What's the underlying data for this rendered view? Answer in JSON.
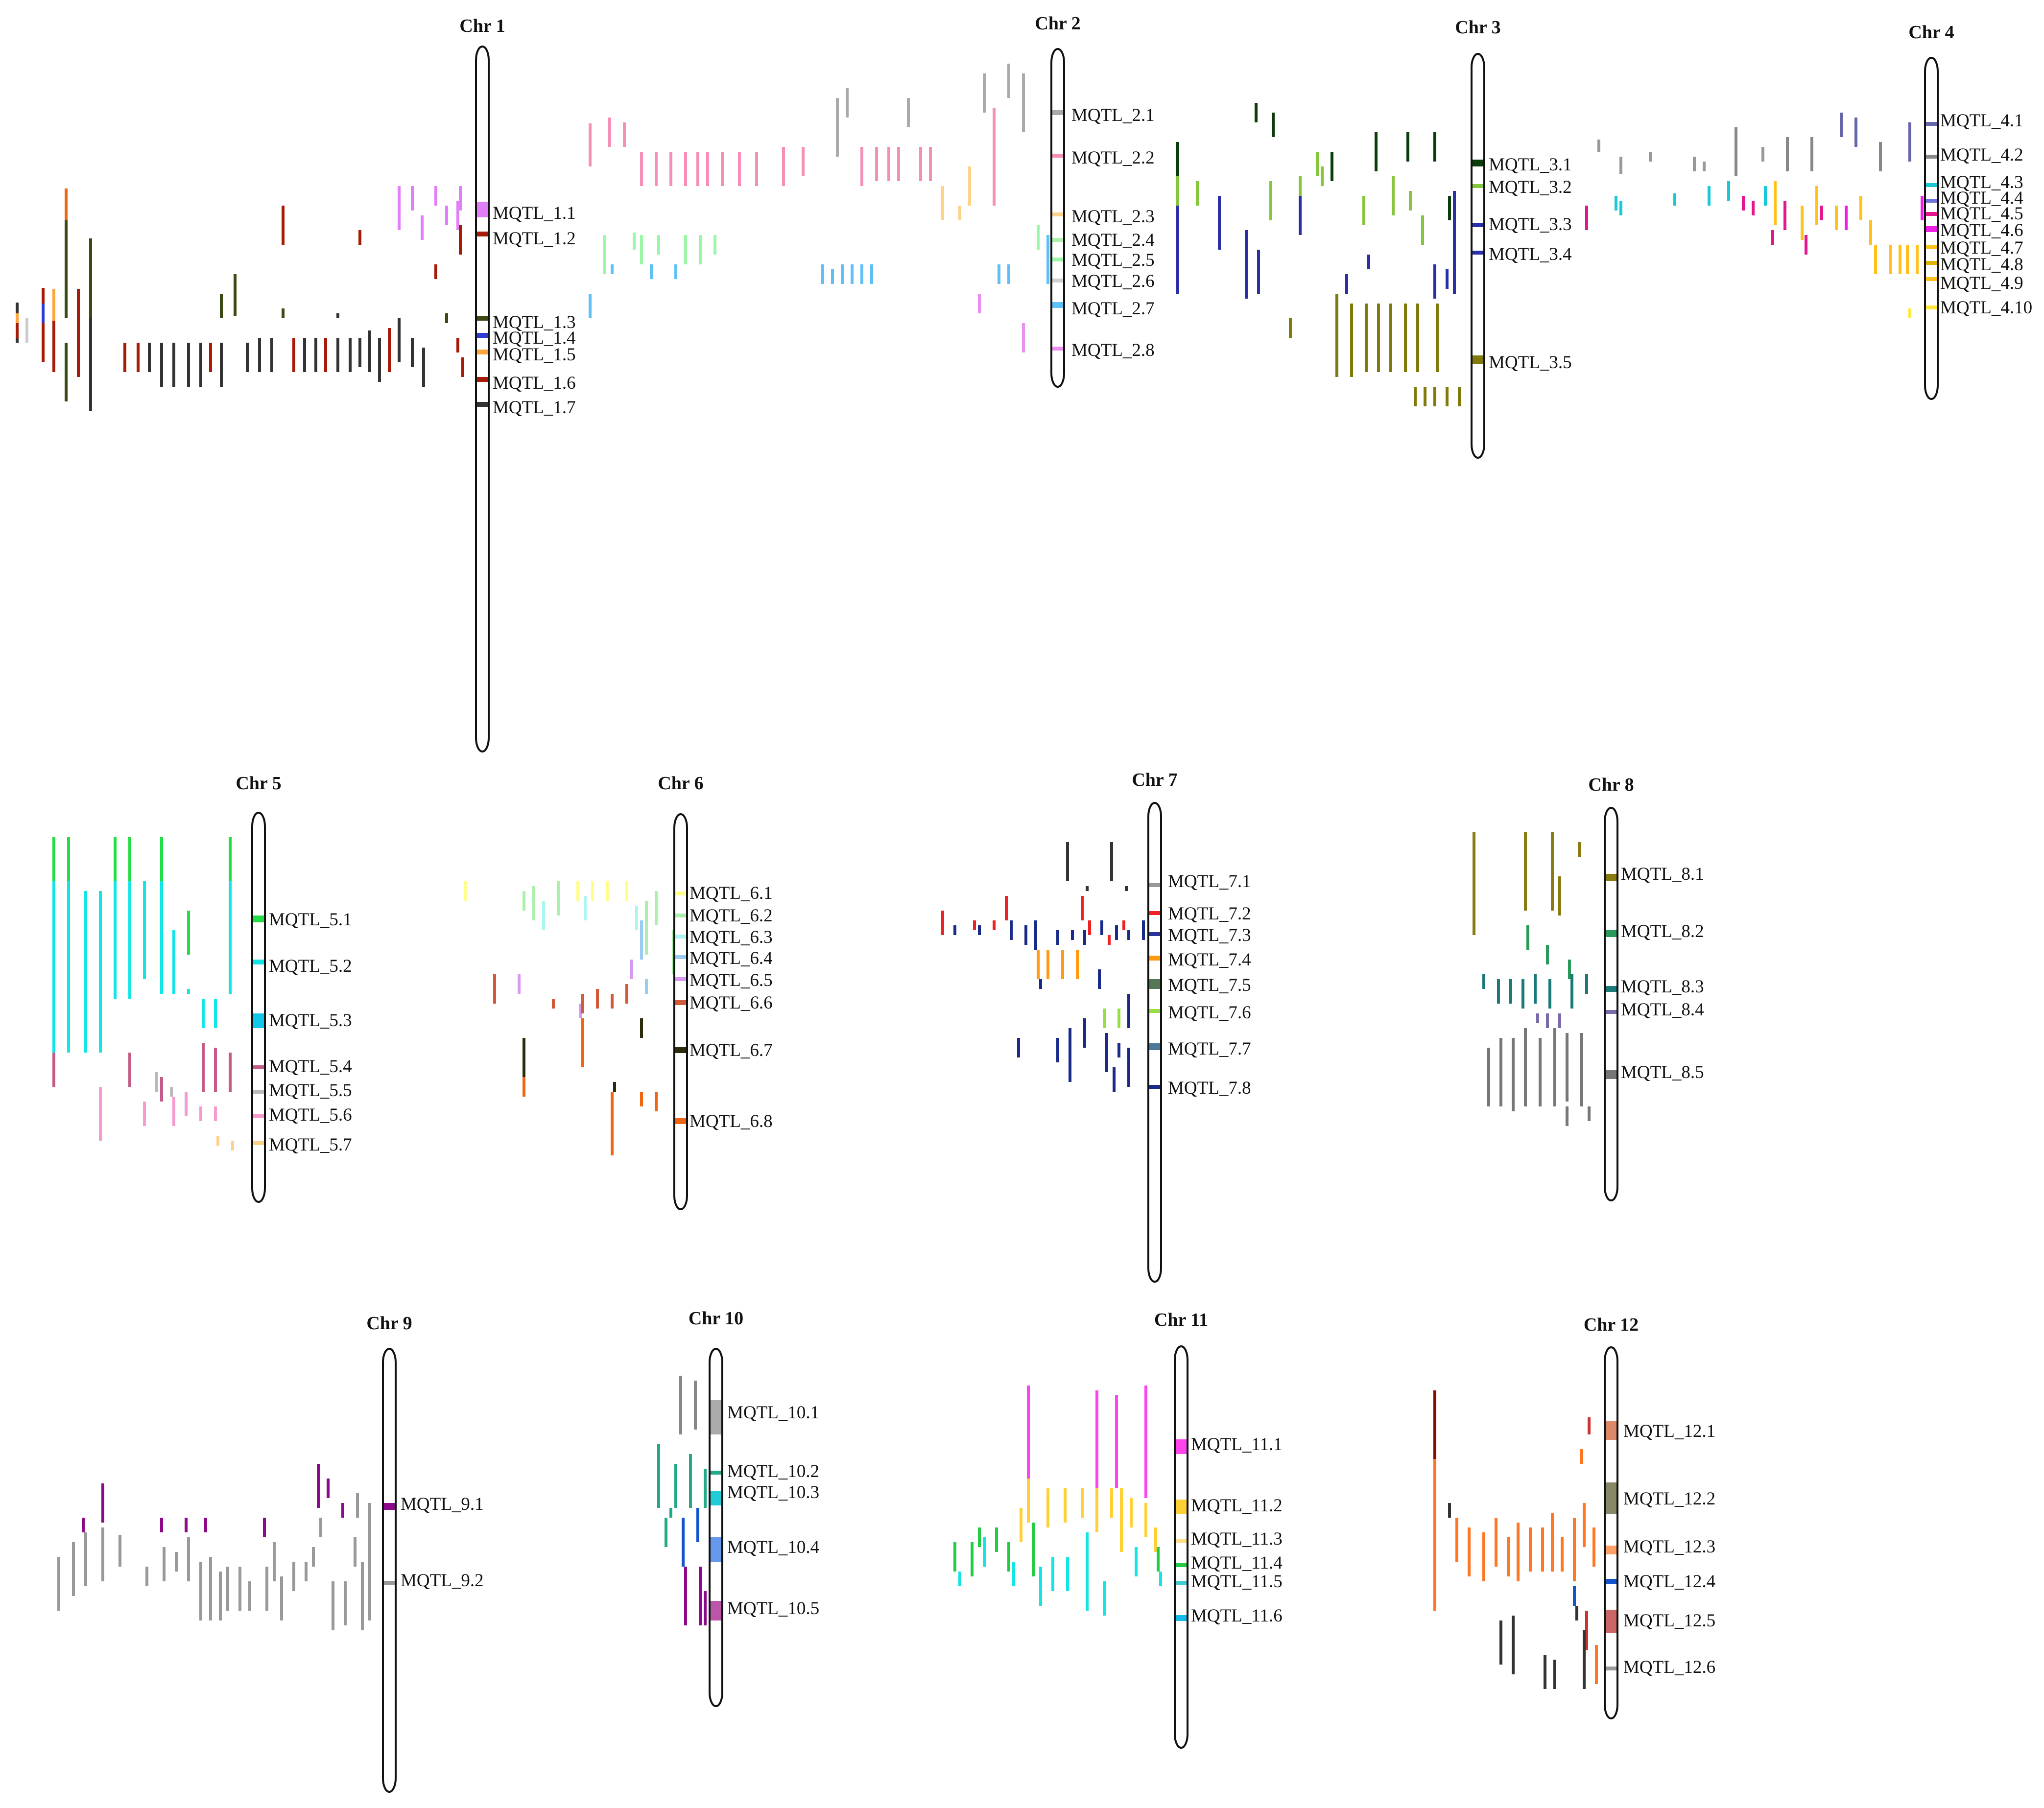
{
  "figure": {
    "chromosomes": [
      {
        "name": "Chr 1",
        "mqtls": [
          {
            "label": "MQTL_1.1",
            "color": "#e27ef7"
          },
          {
            "label": "MQTL_1.2",
            "color": "#a81a08"
          },
          {
            "label": "MQTL_1.3",
            "color": "#3a4a12"
          },
          {
            "label": "MQTL_1.4",
            "color": "#2e3bd6"
          },
          {
            "label": "MQTL_1.5",
            "color": "#ffa33a"
          },
          {
            "label": "MQTL_1.6",
            "color": "#a81a08"
          },
          {
            "label": "MQTL_1.7",
            "color": "#333333"
          }
        ]
      },
      {
        "name": "Chr 2",
        "mqtls": [
          {
            "label": "MQTL_2.1",
            "color": "#aaaaaa"
          },
          {
            "label": "MQTL_2.2",
            "color": "#f58fb8"
          },
          {
            "label": "MQTL_2.3",
            "color": "#ffd28a"
          },
          {
            "label": "MQTL_2.4",
            "color": "#aef0ae"
          },
          {
            "label": "MQTL_2.5",
            "color": "#9af7a8"
          },
          {
            "label": "MQTL_2.6",
            "color": "#cfcfcf"
          },
          {
            "label": "MQTL_2.7",
            "color": "#5fbff7"
          },
          {
            "label": "MQTL_2.8",
            "color": "#ea8ef0"
          }
        ]
      },
      {
        "name": "Chr 3",
        "mqtls": [
          {
            "label": "MQTL_3.1",
            "color": "#0b3d0b"
          },
          {
            "label": "MQTL_3.2",
            "color": "#86c63c"
          },
          {
            "label": "MQTL_3.3",
            "color": "#2a2fa8"
          },
          {
            "label": "MQTL_3.4",
            "color": "#2a2fa8"
          },
          {
            "label": "MQTL_3.5",
            "color": "#807a0a"
          }
        ]
      },
      {
        "name": "Chr 4",
        "mqtls": [
          {
            "label": "MQTL_4.1",
            "color": "#6666aa"
          },
          {
            "label": "MQTL_4.2",
            "color": "#888888"
          },
          {
            "label": "MQTL_4.3",
            "color": "#19c7d6"
          },
          {
            "label": "MQTL_4.4",
            "color": "#6f73d9"
          },
          {
            "label": "MQTL_4.5",
            "color": "#e3158f"
          },
          {
            "label": "MQTL_4.6",
            "color": "#f01de8"
          },
          {
            "label": "MQTL_4.7",
            "color": "#ffc21a"
          },
          {
            "label": "MQTL_4.8",
            "color": "#e0b400"
          },
          {
            "label": "MQTL_4.9",
            "color": "#ffc21a"
          },
          {
            "label": "MQTL_4.10",
            "color": "#ffe83a"
          }
        ]
      },
      {
        "name": "Chr 5",
        "mqtls": [
          {
            "label": "MQTL_5.1",
            "color": "#22dd44"
          },
          {
            "label": "MQTL_5.2",
            "color": "#11e6e6"
          },
          {
            "label": "MQTL_5.3",
            "color": "#11c8e6"
          },
          {
            "label": "MQTL_5.4",
            "color": "#c45c87"
          },
          {
            "label": "MQTL_5.5",
            "color": "#bbbbbb"
          },
          {
            "label": "MQTL_5.6",
            "color": "#f79ad0"
          },
          {
            "label": "MQTL_5.7",
            "color": "#ffd08a"
          }
        ]
      },
      {
        "name": "Chr 6",
        "mqtls": [
          {
            "label": "MQTL_6.1",
            "color": "#ffff88"
          },
          {
            "label": "MQTL_6.2",
            "color": "#aaf0aa"
          },
          {
            "label": "MQTL_6.3",
            "color": "#aaf7ef"
          },
          {
            "label": "MQTL_6.4",
            "color": "#99ccf0"
          },
          {
            "label": "MQTL_6.5",
            "color": "#d89af0"
          },
          {
            "label": "MQTL_6.6",
            "color": "#d05a3a"
          },
          {
            "label": "MQTL_6.7",
            "color": "#2c2c0c"
          },
          {
            "label": "MQTL_6.8",
            "color": "#ee6611"
          }
        ]
      },
      {
        "name": "Chr 7",
        "mqtls": [
          {
            "label": "MQTL_7.1",
            "color": "#999999"
          },
          {
            "label": "MQTL_7.2",
            "color": "#ee2222"
          },
          {
            "label": "MQTL_7.3",
            "color": "#2a3399"
          },
          {
            "label": "MQTL_7.4",
            "color": "#ff9a11"
          },
          {
            "label": "MQTL_7.5",
            "color": "#557755"
          },
          {
            "label": "MQTL_7.6",
            "color": "#99dd44"
          },
          {
            "label": "MQTL_7.7",
            "color": "#4a7a9a"
          },
          {
            "label": "MQTL_7.8",
            "color": "#1a2a88"
          }
        ]
      },
      {
        "name": "Chr 8",
        "mqtls": [
          {
            "label": "MQTL_8.1",
            "color": "#8a7a12"
          },
          {
            "label": "MQTL_8.2",
            "color": "#2a9a5a"
          },
          {
            "label": "MQTL_8.3",
            "color": "#1a7a7a"
          },
          {
            "label": "MQTL_8.4",
            "color": "#7a6aaa"
          },
          {
            "label": "MQTL_8.5",
            "color": "#777777"
          }
        ]
      },
      {
        "name": "Chr 9",
        "mqtls": [
          {
            "label": "MQTL_9.1",
            "color": "#8a0a8a"
          },
          {
            "label": "MQTL_9.2",
            "color": "#999999"
          }
        ]
      },
      {
        "name": "Chr 10",
        "mqtls": [
          {
            "label": "MQTL_10.1",
            "color": "#aaaaaa"
          },
          {
            "label": "MQTL_10.2",
            "color": "#22aa88"
          },
          {
            "label": "MQTL_10.3",
            "color": "#22ccd6"
          },
          {
            "label": "MQTL_10.4",
            "color": "#6699ee"
          },
          {
            "label": "MQTL_10.5",
            "color": "#bb55aa"
          }
        ]
      },
      {
        "name": "Chr 11",
        "mqtls": [
          {
            "label": "MQTL_11.1",
            "color": "#ff44ee"
          },
          {
            "label": "MQTL_11.2",
            "color": "#ffd033"
          },
          {
            "label": "MQTL_11.3",
            "color": "#ffe088"
          },
          {
            "label": "MQTL_11.4",
            "color": "#22cc44"
          },
          {
            "label": "MQTL_11.5",
            "color": "#44ccd6"
          },
          {
            "label": "MQTL_11.6",
            "color": "#11bbee"
          }
        ]
      },
      {
        "name": "Chr 12",
        "mqtls": [
          {
            "label": "MQTL_12.1",
            "color": "#dd8866"
          },
          {
            "label": "MQTL_12.2",
            "color": "#888866"
          },
          {
            "label": "MQTL_12.3",
            "color": "#ffa066"
          },
          {
            "label": "MQTL_12.4",
            "color": "#1155cc"
          },
          {
            "label": "MQTL_12.5",
            "color": "#cc6666"
          },
          {
            "label": "MQTL_12.6",
            "color": "#999999"
          }
        ]
      }
    ]
  }
}
